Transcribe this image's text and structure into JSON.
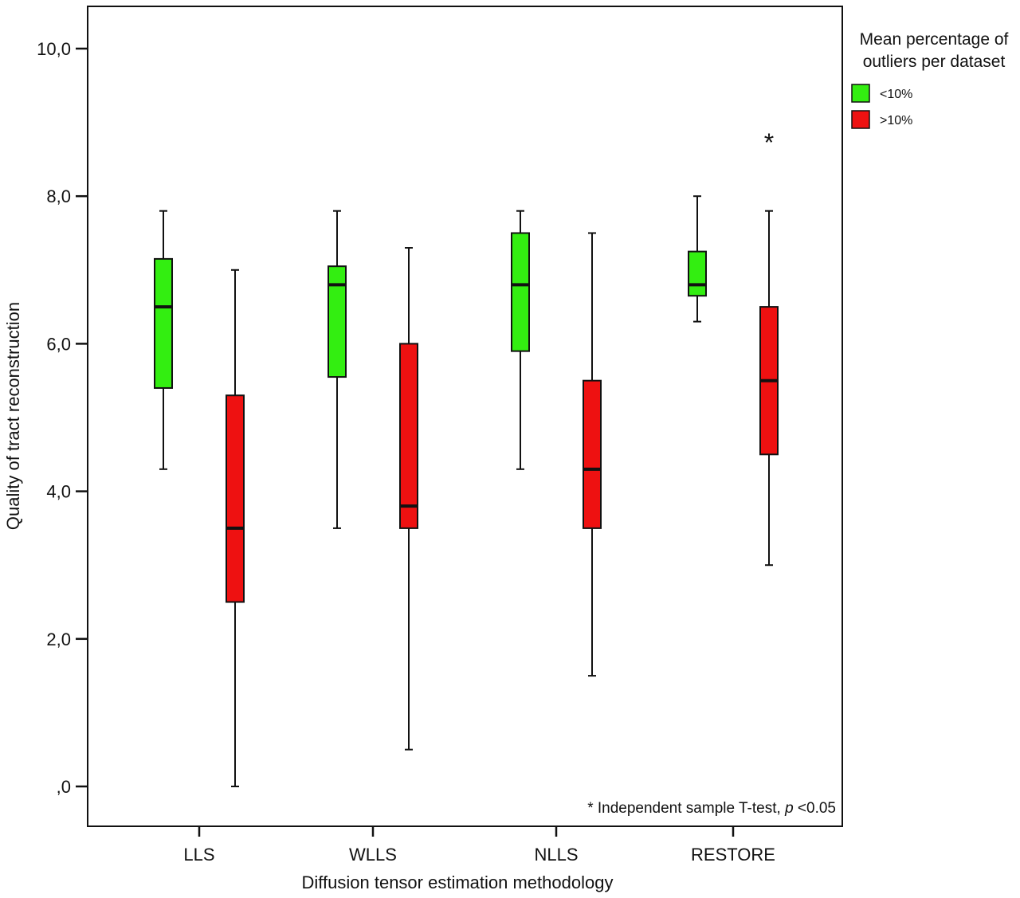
{
  "chart_data": {
    "type": "boxplot",
    "xlabel": "Diffusion tensor estimation methodology",
    "ylabel": "Quality of tract reconstruction",
    "ylim": [
      -0.5,
      10.6
    ],
    "yticks": [
      0,
      2,
      4,
      6,
      8,
      10
    ],
    "ytick_labels": [
      ",0",
      "2,0",
      "4,0",
      "6,0",
      "8,0",
      "10,0"
    ],
    "categories": [
      "LLS",
      "WLLS",
      "NLLS",
      "RESTORE"
    ],
    "grid": false,
    "legend": {
      "title_line1": "Mean percentage of",
      "title_line2": "outliers per dataset",
      "position": "right-top-outside"
    },
    "series": [
      {
        "name": "<10%",
        "color": "#33ee11",
        "boxes": [
          {
            "min": 4.3,
            "q1": 5.4,
            "median": 6.5,
            "q3": 7.15,
            "max": 7.8
          },
          {
            "min": 3.5,
            "q1": 5.55,
            "median": 6.8,
            "q3": 7.05,
            "max": 7.8
          },
          {
            "min": 4.3,
            "q1": 5.9,
            "median": 6.8,
            "q3": 7.5,
            "max": 7.8
          },
          {
            "min": 6.3,
            "q1": 6.65,
            "median": 6.8,
            "q3": 7.25,
            "max": 8.0
          }
        ]
      },
      {
        "name": ">10%",
        "color": "#ee1111",
        "boxes": [
          {
            "min": 0.0,
            "q1": 2.5,
            "median": 3.5,
            "q3": 5.3,
            "max": 7.0
          },
          {
            "min": 0.5,
            "q1": 3.5,
            "median": 3.8,
            "q3": 6.0,
            "max": 7.3
          },
          {
            "min": 1.5,
            "q1": 3.5,
            "median": 4.3,
            "q3": 5.5,
            "max": 7.5
          },
          {
            "min": 3.0,
            "q1": 4.5,
            "median": 5.5,
            "q3": 6.5,
            "max": 7.8
          }
        ]
      }
    ],
    "annotations": [
      {
        "text": "*",
        "category": "RESTORE",
        "series": ">10%",
        "y": 8.8
      }
    ],
    "note_prefix": "* Independent sample T-test, ",
    "note_italic": "p",
    "note_suffix": " <0.05"
  }
}
